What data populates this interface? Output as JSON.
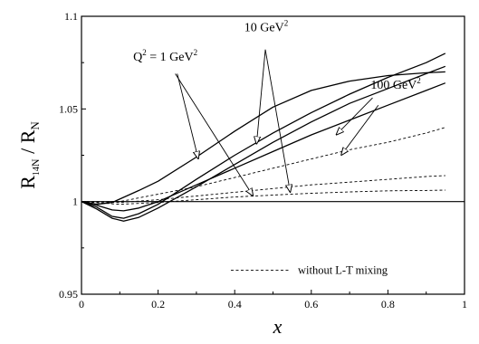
{
  "chart_data": {
    "type": "line",
    "title": "",
    "xlabel": "x",
    "ylabel": {
      "main": "R",
      "sub1": "14",
      "sub2": "N",
      "sep": " / ",
      "main2": "R",
      "sub3": "N"
    },
    "xlim": [
      0,
      1
    ],
    "ylim": [
      0.95,
      1.1
    ],
    "x_ticks": [
      {
        "value": 0,
        "label": "0"
      },
      {
        "value": 0.2,
        "label": "0.2"
      },
      {
        "value": 0.4,
        "label": "0.4"
      },
      {
        "value": 0.6,
        "label": "0.6"
      },
      {
        "value": 0.8,
        "label": "0.8"
      },
      {
        "value": 1,
        "label": "1"
      }
    ],
    "y_ticks": [
      {
        "value": 0.95,
        "label": "0.95"
      },
      {
        "value": 1,
        "label": "1"
      },
      {
        "value": 1.05,
        "label": "1.05"
      },
      {
        "value": 1.1,
        "label": "1.1"
      }
    ],
    "reference_line": {
      "y": 1
    },
    "grid": false,
    "series": [
      {
        "style": "solid",
        "points": [
          [
            0,
            1
          ],
          [
            0.04,
            0.9985
          ],
          [
            0.08,
            0.9995
          ],
          [
            0.15,
            1.006
          ],
          [
            0.2,
            1.011
          ],
          [
            0.3,
            1.024
          ],
          [
            0.4,
            1.038
          ],
          [
            0.5,
            1.051
          ],
          [
            0.6,
            1.06
          ],
          [
            0.7,
            1.065
          ],
          [
            0.8,
            1.068
          ],
          [
            0.9,
            1.0695
          ],
          [
            0.95,
            1.07
          ]
        ]
      },
      {
        "style": "solid",
        "points": [
          [
            0,
            1
          ],
          [
            0.04,
            0.997
          ],
          [
            0.08,
            0.992
          ],
          [
            0.11,
            0.991
          ],
          [
            0.15,
            0.9935
          ],
          [
            0.2,
            0.9985
          ],
          [
            0.3,
            1.012
          ],
          [
            0.4,
            1.025
          ],
          [
            0.5,
            1.037
          ],
          [
            0.6,
            1.048
          ],
          [
            0.7,
            1.058
          ],
          [
            0.8,
            1.067
          ],
          [
            0.9,
            1.075
          ],
          [
            0.95,
            1.08
          ]
        ]
      },
      {
        "style": "solid",
        "points": [
          [
            0,
            1
          ],
          [
            0.04,
            0.996
          ],
          [
            0.08,
            0.991
          ],
          [
            0.11,
            0.9895
          ],
          [
            0.15,
            0.9915
          ],
          [
            0.2,
            0.9965
          ],
          [
            0.3,
            1.008
          ],
          [
            0.4,
            1.02
          ],
          [
            0.5,
            1.032
          ],
          [
            0.6,
            1.043
          ],
          [
            0.7,
            1.053
          ],
          [
            0.8,
            1.061
          ],
          [
            0.9,
            1.069
          ],
          [
            0.95,
            1.073
          ]
        ]
      },
      {
        "style": "solid",
        "points": [
          [
            0,
            1
          ],
          [
            0.04,
            0.998
          ],
          [
            0.08,
            0.9955
          ],
          [
            0.11,
            0.995
          ],
          [
            0.15,
            0.9965
          ],
          [
            0.2,
            1.0
          ],
          [
            0.3,
            1.009
          ],
          [
            0.4,
            1.018
          ],
          [
            0.5,
            1.027
          ],
          [
            0.6,
            1.036
          ],
          [
            0.7,
            1.044
          ],
          [
            0.8,
            1.052
          ],
          [
            0.9,
            1.06
          ],
          [
            0.95,
            1.064
          ]
        ]
      },
      {
        "style": "dashed",
        "points": [
          [
            0,
            1
          ],
          [
            0.1,
            1.0
          ],
          [
            0.2,
            1.004
          ],
          [
            0.3,
            1.008
          ],
          [
            0.4,
            1.013
          ],
          [
            0.5,
            1.018
          ],
          [
            0.6,
            1.023
          ],
          [
            0.7,
            1.028
          ],
          [
            0.8,
            1.032
          ],
          [
            0.9,
            1.037
          ],
          [
            0.95,
            1.04
          ]
        ]
      },
      {
        "style": "dashed",
        "points": [
          [
            0,
            1
          ],
          [
            0.1,
            0.9995
          ],
          [
            0.2,
            1.001
          ],
          [
            0.3,
            1.003
          ],
          [
            0.4,
            1.005
          ],
          [
            0.5,
            1.007
          ],
          [
            0.6,
            1.009
          ],
          [
            0.7,
            1.0105
          ],
          [
            0.8,
            1.012
          ],
          [
            0.9,
            1.0135
          ],
          [
            0.95,
            1.014
          ]
        ]
      },
      {
        "style": "dashed",
        "points": [
          [
            0,
            1
          ],
          [
            0.1,
            0.9985
          ],
          [
            0.2,
            0.9995
          ],
          [
            0.3,
            1.001
          ],
          [
            0.4,
            1.0025
          ],
          [
            0.5,
            1.0035
          ],
          [
            0.6,
            1.0045
          ],
          [
            0.7,
            1.0052
          ],
          [
            0.8,
            1.0058
          ],
          [
            0.9,
            1.006
          ],
          [
            0.95,
            1.0062
          ]
        ]
      }
    ],
    "annotations": [
      {
        "id": "q1",
        "text": "Q",
        "sup1": "2",
        "text2": " = 1 GeV",
        "sup2": "2",
        "at": [
          0.135,
          1.076
        ],
        "arrows": [
          {
            "from": [
              0.25,
              1.069
            ],
            "to": [
              0.305,
              1.023
            ]
          },
          {
            "from": [
              0.245,
              1.069
            ],
            "to": [
              0.448,
              1.003
            ]
          }
        ]
      },
      {
        "id": "q10",
        "text": "10 GeV",
        "sup2": "2",
        "at": [
          0.425,
          1.092
        ],
        "arrows": [
          {
            "from": [
              0.48,
              1.082
            ],
            "to": [
              0.457,
              1.031
            ]
          },
          {
            "from": [
              0.48,
              1.082
            ],
            "to": [
              0.545,
              1.005
            ]
          }
        ]
      },
      {
        "id": "q100",
        "text": "100 GeV",
        "sup2": "2",
        "at": [
          0.755,
          1.061
        ],
        "arrows": [
          {
            "from": [
              0.76,
              1.056
            ],
            "to": [
              0.665,
              1.036
            ]
          },
          {
            "from": [
              0.775,
              1.052
            ],
            "to": [
              0.678,
              1.025
            ]
          }
        ]
      }
    ],
    "legend": {
      "label": "without L-T mixing",
      "style": "dashed",
      "placement": "bottom-right"
    }
  }
}
